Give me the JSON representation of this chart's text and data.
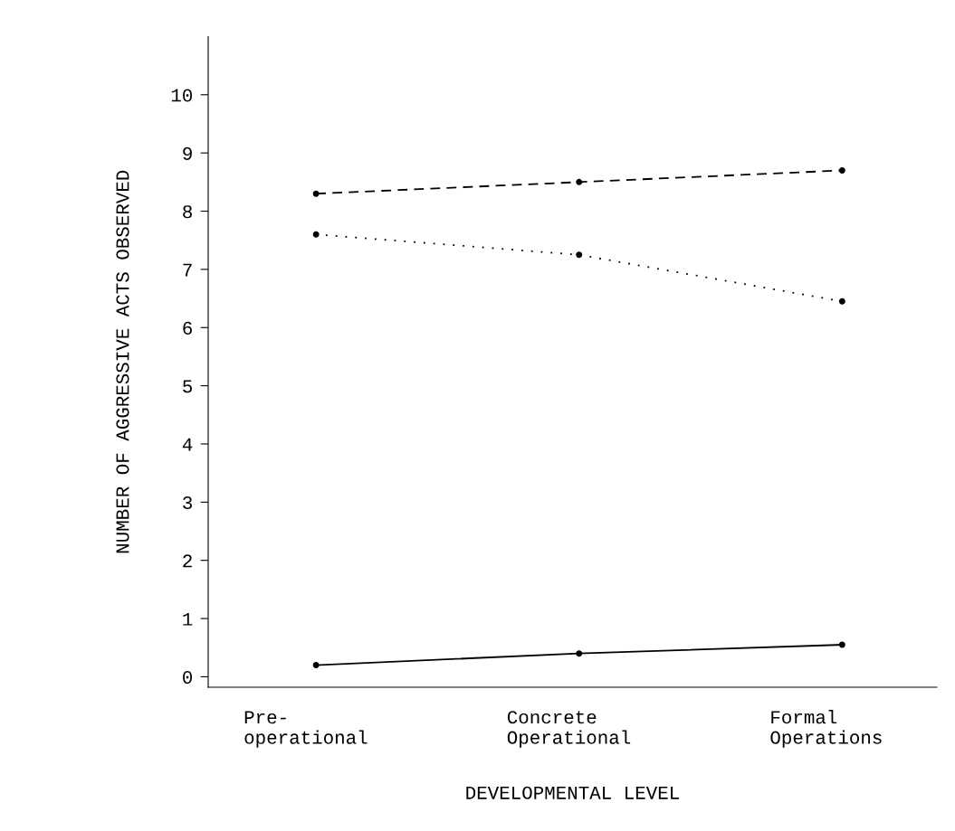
{
  "chart_data": {
    "type": "line",
    "xlabel": "DEVELOPMENTAL LEVEL",
    "ylabel": "NUMBER OF AGGRESSIVE ACTS OBSERVED",
    "categories": [
      "Pre-\noperational",
      "Concrete\nOperational",
      "Formal\nOperations"
    ],
    "series": [
      {
        "color": "#000000",
        "line_style": "dashed",
        "values": [
          8.3,
          8.5,
          8.7
        ]
      },
      {
        "color": "#000000",
        "line_style": "dotted",
        "values": [
          7.6,
          7.25,
          6.45
        ]
      },
      {
        "color": "#000000",
        "line_style": "solid",
        "values": [
          0.2,
          0.4,
          0.55
        ]
      }
    ],
    "ylim": [
      -0.18,
      11
    ],
    "yticks": [
      0,
      1,
      2,
      3,
      4,
      5,
      6,
      7,
      8,
      9,
      10
    ],
    "marker": "circle",
    "grid": false,
    "legend": false
  }
}
